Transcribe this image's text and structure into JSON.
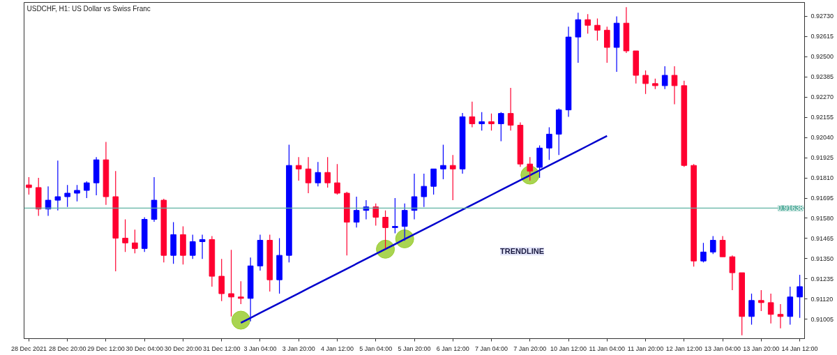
{
  "chart_data": {
    "type": "candlestick",
    "title": "USDCHF, H1:  US Dollar vs Swiss Franc",
    "annotations": [
      "TRENDLINE"
    ],
    "categories": [
      "28 Dec 2021",
      null,
      null,
      null,
      "28 Dec 20:00",
      null,
      null,
      null,
      "29 Dec 12:00",
      null,
      null,
      null,
      "30 Dec 04:00",
      null,
      null,
      null,
      "30 Dec 20:00",
      null,
      null,
      null,
      "31 Dec 12:00",
      null,
      null,
      null,
      "3 Jan 04:00",
      null,
      null,
      null,
      "3 Jan 20:00",
      null,
      null,
      null,
      "4 Jan 12:00",
      null,
      null,
      null,
      "5 Jan 04:00",
      null,
      null,
      null,
      "5 Jan 20:00",
      null,
      null,
      null,
      "6 Jan 12:00",
      null,
      null,
      null,
      "7 Jan 04:00",
      null,
      null,
      null,
      "7 Jan 20:00",
      null,
      null,
      null,
      "10 Jan 12:00",
      null,
      null,
      null,
      "11 Jan 04:00",
      null,
      null,
      null,
      "11 Jan 20:00",
      null,
      null,
      null,
      "12 Jan 12:00",
      null,
      null,
      null,
      "13 Jan 04:00",
      null,
      null,
      null,
      "13 Jan 20:00",
      null,
      null,
      null,
      "14 Jan 12:00"
    ],
    "ohlc": [
      [
        0.9177,
        0.91814,
        0.91715,
        0.91755
      ],
      [
        0.91755,
        0.9181,
        0.91594,
        0.91633
      ],
      [
        0.91633,
        0.91762,
        0.91594,
        0.91683
      ],
      [
        0.91683,
        0.91909,
        0.91625,
        0.91703
      ],
      [
        0.91703,
        0.9177,
        0.91645,
        0.91723
      ],
      [
        0.91723,
        0.9177,
        0.91676,
        0.91739
      ],
      [
        0.91739,
        0.9179,
        0.91695,
        0.91782
      ],
      [
        0.91782,
        0.91928,
        0.91711,
        0.91913
      ],
      [
        0.91913,
        0.92015,
        0.91656,
        0.91703
      ],
      [
        0.91703,
        0.91849,
        0.91278,
        0.91467
      ],
      [
        0.91467,
        0.91574,
        0.91388,
        0.9144
      ],
      [
        0.9144,
        0.91515,
        0.9138,
        0.91408
      ],
      [
        0.91408,
        0.91586,
        0.91388,
        0.91574
      ],
      [
        0.91574,
        0.91814,
        0.9156,
        0.91683
      ],
      [
        0.91683,
        0.91691,
        0.91329,
        0.91369
      ],
      [
        0.91369,
        0.91558,
        0.91321,
        0.91487
      ],
      [
        0.91487,
        0.91534,
        0.91317,
        0.91369
      ],
      [
        0.91369,
        0.91487,
        0.91349,
        0.91447
      ],
      [
        0.91447,
        0.91487,
        0.91349,
        0.91459
      ],
      [
        0.91459,
        0.91479,
        0.91191,
        0.9125
      ],
      [
        0.9125,
        0.91349,
        0.91108,
        0.91151
      ],
      [
        0.91151,
        0.914,
        0.91021,
        0.91132
      ],
      [
        0.91132,
        0.91222,
        0.91092,
        0.91124
      ],
      [
        0.91124,
        0.91357,
        0.90993,
        0.91309
      ],
      [
        0.91309,
        0.91487,
        0.91282,
        0.91455
      ],
      [
        0.91455,
        0.91487,
        0.91163,
        0.9123
      ],
      [
        0.9123,
        0.91467,
        0.91151,
        0.91369
      ],
      [
        0.91369,
        0.91999,
        0.91329,
        0.91881
      ],
      [
        0.91881,
        0.91928,
        0.91794,
        0.91861
      ],
      [
        0.91861,
        0.91928,
        0.91723,
        0.91782
      ],
      [
        0.91782,
        0.91901,
        0.91762,
        0.91841
      ],
      [
        0.91841,
        0.91928,
        0.91755,
        0.91782
      ],
      [
        0.91782,
        0.91889,
        0.91715,
        0.91723
      ],
      [
        0.91723,
        0.91731,
        0.91369,
        0.91558
      ],
      [
        0.91558,
        0.91703,
        0.91527,
        0.91625
      ],
      [
        0.91625,
        0.91683,
        0.91574,
        0.91645
      ],
      [
        0.91645,
        0.91664,
        0.91538,
        0.91586
      ],
      [
        0.91586,
        0.91625,
        0.91408,
        0.91527
      ],
      [
        0.91527,
        0.91695,
        0.91495,
        0.91534
      ],
      [
        0.91534,
        0.91664,
        0.91452,
        0.91625
      ],
      [
        0.91625,
        0.91834,
        0.91574,
        0.91703
      ],
      [
        0.91703,
        0.91834,
        0.91645,
        0.91762
      ],
      [
        0.91762,
        0.91861,
        0.91715,
        0.91861
      ],
      [
        0.91861,
        0.91999,
        0.91802,
        0.91881
      ],
      [
        0.91881,
        0.9194,
        0.91683,
        0.91861
      ],
      [
        0.91861,
        0.9218,
        0.91834,
        0.92158
      ],
      [
        0.92158,
        0.92244,
        0.92098,
        0.92118
      ],
      [
        0.92118,
        0.92185,
        0.92079,
        0.9213
      ],
      [
        0.9213,
        0.92177,
        0.92079,
        0.92118
      ],
      [
        0.92118,
        0.92185,
        0.92019,
        0.92177
      ],
      [
        0.92177,
        0.92323,
        0.92079,
        0.9211
      ],
      [
        0.9211,
        0.92126,
        0.91873,
        0.91889
      ],
      [
        0.91889,
        0.91928,
        0.91794,
        0.91849
      ],
      [
        0.9187,
        0.91995,
        0.9181,
        0.9198
      ],
      [
        0.9198,
        0.92098,
        0.91913,
        0.92059
      ],
      [
        0.92059,
        0.92205,
        0.9194,
        0.92197
      ],
      [
        0.92197,
        0.92671,
        0.92158,
        0.92612
      ],
      [
        0.92612,
        0.9275,
        0.92466,
        0.92711
      ],
      [
        0.92711,
        0.92742,
        0.92631,
        0.92679
      ],
      [
        0.92679,
        0.92718,
        0.92592,
        0.92651
      ],
      [
        0.92651,
        0.92671,
        0.92466,
        0.92553
      ],
      [
        0.92553,
        0.9273,
        0.92414,
        0.92691
      ],
      [
        0.92691,
        0.92782,
        0.92521,
        0.92533
      ],
      [
        0.92533,
        0.92533,
        0.92347,
        0.92394
      ],
      [
        0.92394,
        0.92422,
        0.92288,
        0.92347
      ],
      [
        0.92347,
        0.92375,
        0.92316,
        0.92335
      ],
      [
        0.92335,
        0.92446,
        0.92316,
        0.92394
      ],
      [
        0.92394,
        0.92446,
        0.92229,
        0.92335
      ],
      [
        0.92335,
        0.92363,
        0.91873,
        0.91881
      ],
      [
        0.91881,
        0.91889,
        0.91305,
        0.91337
      ],
      [
        0.91337,
        0.9144,
        0.91329,
        0.91388
      ],
      [
        0.91388,
        0.91479,
        0.91376,
        0.91455
      ],
      [
        0.91455,
        0.91479,
        0.91361,
        0.91361
      ],
      [
        0.91361,
        0.91369,
        0.91171,
        0.9127
      ],
      [
        0.9127,
        0.9127,
        0.90914,
        0.91021
      ],
      [
        0.91021,
        0.91151,
        0.90974,
        0.91112
      ],
      [
        0.91112,
        0.91171,
        0.91052,
        0.911
      ],
      [
        0.911,
        0.91151,
        0.90981,
        0.91033
      ],
      [
        0.91033,
        0.91092,
        0.90954,
        0.91021
      ],
      [
        0.91021,
        0.91191,
        0.90974,
        0.91132
      ],
      [
        0.91132,
        0.91258,
        0.91013,
        0.91191
      ]
    ],
    "colors": [
      "#ff0030",
      "#ff0030",
      "#0000ff",
      "#0000ff",
      "#0000ff",
      "#0000ff",
      "#0000ff",
      "#0000ff",
      "#ff0030",
      "#ff0030",
      "#ff0030",
      "#ff0030",
      "#0000ff",
      "#0000ff",
      "#ff0030",
      "#0000ff",
      "#ff0030",
      "#0000ff",
      "#0000ff",
      "#ff0030",
      "#ff0030",
      "#ff0030",
      "#ff0030",
      "#0000ff",
      "#0000ff",
      "#ff0030",
      "#0000ff",
      "#0000ff",
      "#ff0030",
      "#ff0030",
      "#0000ff",
      "#ff0030",
      "#ff0030",
      "#ff0030",
      "#0000ff",
      "#0000ff",
      "#ff0030",
      "#ff0030",
      "#0000ff",
      "#0000ff",
      "#0000ff",
      "#0000ff",
      "#0000ff",
      "#0000ff",
      "#ff0030",
      "#0000ff",
      "#ff0030",
      "#0000ff",
      "#ff0030",
      "#0000ff",
      "#ff0030",
      "#ff0030",
      "#ff0030",
      "#0000ff",
      "#0000ff",
      "#0000ff",
      "#0000ff",
      "#0000ff",
      "#ff0030",
      "#ff0030",
      "#ff0030",
      "#0000ff",
      "#ff0030",
      "#ff0030",
      "#ff0030",
      "#ff0030",
      "#0000ff",
      "#ff0030",
      "#ff0030",
      "#ff0030",
      "#0000ff",
      "#0000ff",
      "#ff0030",
      "#ff0030",
      "#ff0030",
      "#0000ff",
      "#ff0030",
      "#ff0030",
      "#ff0030",
      "#0000ff",
      "#0000ff"
    ],
    "series": [
      {
        "type": "line",
        "color": "#0000cd",
        "values": [
          null,
          null,
          null,
          null,
          null,
          null,
          null,
          null,
          null,
          null,
          null,
          null,
          null,
          null,
          null,
          null,
          null,
          null,
          null,
          null,
          null,
          null,
          0.90985,
          0.91013,
          0.91041,
          0.91069,
          0.91097,
          0.91125,
          0.91153,
          0.91181,
          0.91209,
          0.91237,
          0.91265,
          0.91293,
          0.91321,
          0.91349,
          0.91377,
          0.91405,
          0.91433,
          0.91461,
          0.91489,
          0.91517,
          0.91545,
          0.91573,
          0.91601,
          0.91629,
          0.91657,
          0.91685,
          0.91713,
          0.91741,
          0.91769,
          0.91797,
          0.91825,
          0.91853,
          0.91881,
          0.91909,
          0.91937,
          0.91965,
          0.91993,
          0.92021,
          0.92049,
          null,
          null,
          null,
          null,
          null,
          null,
          null,
          null,
          null,
          null,
          null,
          null,
          null,
          null,
          null,
          null,
          null,
          null,
          null,
          null
        ]
      },
      {
        "type": "scatter",
        "color": "#9acd32",
        "marker": "circle",
        "values": [
          null,
          null,
          null,
          null,
          null,
          null,
          null,
          null,
          null,
          null,
          null,
          null,
          null,
          null,
          null,
          null,
          null,
          null,
          null,
          null,
          null,
          null,
          0.91,
          null,
          null,
          null,
          null,
          null,
          null,
          null,
          null,
          null,
          null,
          null,
          null,
          null,
          null,
          0.91404,
          null,
          0.91463,
          null,
          null,
          null,
          null,
          null,
          null,
          null,
          null,
          null,
          null,
          null,
          null,
          0.91826,
          null,
          null,
          null,
          null,
          null,
          null,
          null,
          null,
          null,
          null,
          null,
          null,
          null,
          null,
          null,
          null,
          null,
          null,
          null,
          null,
          null,
          null,
          null,
          null,
          null,
          null,
          null,
          null
        ]
      }
    ],
    "ref_lines": [
      {
        "axis": "y",
        "value": 0.91638,
        "label": "0.91638",
        "color": "#5fb3a3"
      }
    ],
    "ylim": [
      0.90895,
      0.92809
    ],
    "yticks": [
      {
        "value": 0.91005,
        "label": "0.91005"
      },
      {
        "value": 0.9112,
        "label": "0.91120"
      },
      {
        "value": 0.91235,
        "label": "0.91235"
      },
      {
        "value": 0.9135,
        "label": "0.91350"
      },
      {
        "value": 0.91465,
        "label": "0.91465"
      },
      {
        "value": 0.9158,
        "label": "0.91580"
      },
      {
        "value": 0.91695,
        "label": "0.91695"
      },
      {
        "value": 0.9181,
        "label": "0.91810"
      },
      {
        "value": 0.91925,
        "label": "0.91925"
      },
      {
        "value": 0.9204,
        "label": "0.92040"
      },
      {
        "value": 0.92155,
        "label": "0.92155"
      },
      {
        "value": 0.9227,
        "label": "0.92270"
      },
      {
        "value": 0.92385,
        "label": "0.92385"
      },
      {
        "value": 0.925,
        "label": "0.92500"
      },
      {
        "value": 0.92615,
        "label": "0.92615"
      },
      {
        "value": 0.9273,
        "label": "0.92730"
      }
    ],
    "grid": false
  }
}
